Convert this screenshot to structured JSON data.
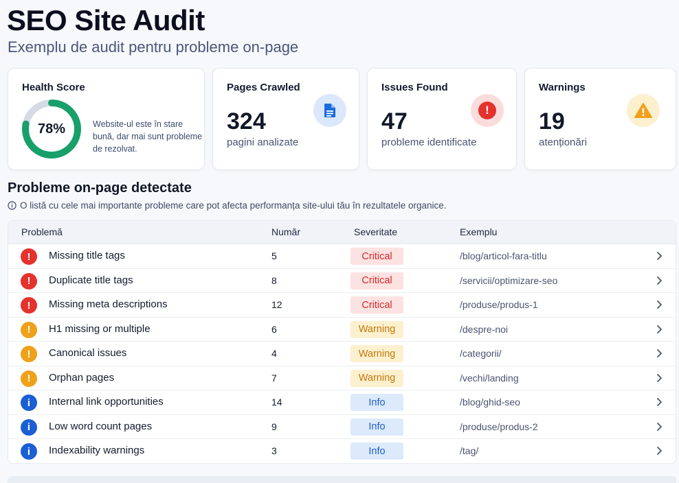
{
  "header": {
    "title": "SEO Site Audit",
    "subtitle": "Exemplu de audit pentru probleme on-page"
  },
  "cards": {
    "health": {
      "title": "Health Score",
      "value": "78%",
      "score_fraction": 0.78,
      "description": "Website-ul este în stare bună, dar mai sunt probleme de rezolvat."
    },
    "pages": {
      "title": "Pages Crawled",
      "value": "324",
      "sub": "pagini analizate",
      "icon": "document-icon"
    },
    "issues": {
      "title": "Issues Found",
      "value": "47",
      "sub": "probleme identificate",
      "icon": "error-icon"
    },
    "warnings": {
      "title": "Warnings",
      "value": "19",
      "sub": "atenționări",
      "icon": "warning-triangle-icon"
    }
  },
  "section": {
    "title": "Probleme on-page detectate",
    "description": "O listă cu cele mai importante probleme care pot afecta performanța site-ului tău în rezultatele organice."
  },
  "table": {
    "headers": {
      "problem": "Problemă",
      "count": "Număr",
      "severity": "Severitate",
      "example": "Exemplu"
    },
    "rows": [
      {
        "name": "Missing title tags",
        "count": "5",
        "severity": "Critical",
        "level": "critical",
        "example": "/blog/articol-fara-titlu"
      },
      {
        "name": "Duplicate title tags",
        "count": "8",
        "severity": "Critical",
        "level": "critical",
        "example": "/servicii/optimizare-seo"
      },
      {
        "name": "Missing meta descriptions",
        "count": "12",
        "severity": "Critical",
        "level": "critical",
        "example": "/produse/produs-1"
      },
      {
        "name": "H1 missing or multiple",
        "count": "6",
        "severity": "Warning",
        "level": "warning",
        "example": "/despre-noi"
      },
      {
        "name": "Canonical issues",
        "count": "4",
        "severity": "Warning",
        "level": "warning",
        "example": "/categorii/"
      },
      {
        "name": "Orphan pages",
        "count": "7",
        "severity": "Warning",
        "level": "warning",
        "example": "/vechi/landing"
      },
      {
        "name": "Internal link opportunities",
        "count": "14",
        "severity": "Info",
        "level": "info",
        "example": "/blog/ghid-seo"
      },
      {
        "name": "Low word count pages",
        "count": "9",
        "severity": "Info",
        "level": "info",
        "example": "/produse/produs-2"
      },
      {
        "name": "Indexability warnings",
        "count": "3",
        "severity": "Info",
        "level": "info",
        "example": "/tag/"
      }
    ]
  },
  "colors": {
    "critical": "#e5322d",
    "warning": "#f0a11a",
    "info": "#1a5fd4",
    "gauge_fill": "#18a06a",
    "gauge_track": "#d5dbe4"
  }
}
